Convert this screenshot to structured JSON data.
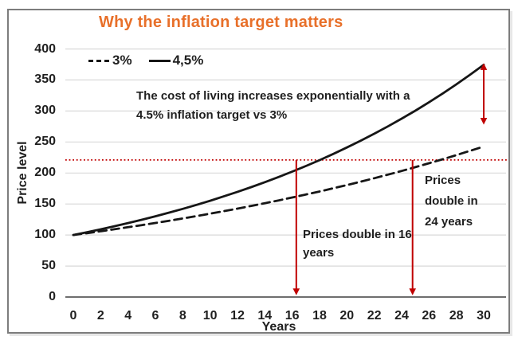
{
  "title": {
    "text": "Why the inflation target matters",
    "color": "#E8702A"
  },
  "legend": {
    "items": [
      {
        "label": "3%",
        "style": "dashed"
      },
      {
        "label": "4,5%",
        "style": "solid"
      }
    ]
  },
  "annotations": {
    "note_lines": [
      "The cost of living increases exponentially with a",
      "4.5% inflation target vs 3%"
    ],
    "double16_lines": [
      "Prices double in 16",
      "years"
    ],
    "double24_lines": [
      "Prices",
      "double in",
      "24 years"
    ]
  },
  "colors": {
    "accent_orange": "#E8702A",
    "red": "#C00000",
    "line_black": "#161616",
    "grid": "#D9D9D9",
    "axis": "#6E6E6E",
    "frame_border": "#7D7D7D"
  },
  "chart_data": {
    "type": "line",
    "title": "Why the inflation target matters",
    "xlabel": "Years",
    "ylabel": "Price level",
    "xlim": [
      0,
      30
    ],
    "ylim": [
      0,
      400
    ],
    "grid": "horizontal-only",
    "legend_position": "inside-top-left",
    "x": [
      0,
      1,
      2,
      3,
      4,
      5,
      6,
      7,
      8,
      9,
      10,
      11,
      12,
      13,
      14,
      15,
      16,
      17,
      18,
      19,
      20,
      21,
      22,
      23,
      24,
      25,
      26,
      27,
      28,
      29,
      30
    ],
    "x_ticks": [
      0,
      2,
      4,
      6,
      8,
      10,
      12,
      14,
      16,
      18,
      20,
      22,
      24,
      26,
      28,
      30
    ],
    "y_ticks": [
      0,
      50,
      100,
      150,
      200,
      250,
      300,
      350,
      400
    ],
    "series": [
      {
        "name": "3%",
        "rate_pct": 3,
        "style": "dashed",
        "color": "#161616",
        "values": [
          100,
          103,
          106.1,
          109.3,
          112.6,
          115.9,
          119.4,
          123,
          126.7,
          130.5,
          134.4,
          138.4,
          142.6,
          146.9,
          151.3,
          155.8,
          160.5,
          165.3,
          170.2,
          175.4,
          180.6,
          186,
          191.6,
          197.4,
          203.3,
          209.4,
          215.7,
          222.1,
          228.8,
          235.7,
          242.7
        ]
      },
      {
        "name": "4,5%",
        "rate_pct": 4.5,
        "style": "solid",
        "color": "#161616",
        "values": [
          100,
          104.5,
          109.2,
          114.1,
          119.3,
          124.6,
          130.2,
          136.1,
          142.2,
          148.6,
          155.3,
          162.3,
          169.6,
          177.2,
          185.2,
          193.5,
          202.2,
          211.3,
          220.8,
          230.8,
          241.2,
          252,
          263.4,
          275.2,
          287.6,
          300.5,
          314.1,
          328.2,
          343,
          358.4,
          374.5
        ]
      }
    ],
    "reference_line": {
      "y": 221,
      "color": "#C00000",
      "style": "dotted"
    },
    "arrows": [
      {
        "x": 16.3,
        "y_from": 221,
        "y_to": 3,
        "heads": "end",
        "color": "#C00000"
      },
      {
        "x": 24.8,
        "y_from": 221,
        "y_to": 3,
        "heads": "end",
        "color": "#C00000"
      },
      {
        "x": 30,
        "y_from": 377,
        "y_to": 278,
        "heads": "both",
        "color": "#C00000"
      }
    ]
  }
}
